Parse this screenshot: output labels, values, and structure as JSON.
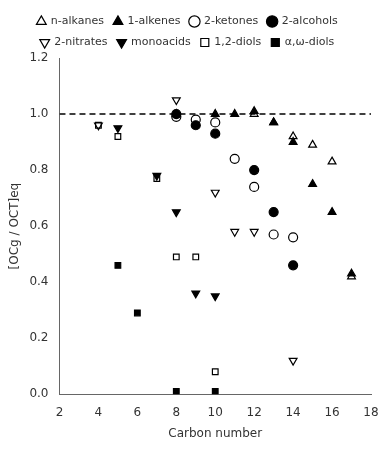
{
  "chart_data": {
    "type": "scatter",
    "xlabel": "Carbon number",
    "ylabel": "[OCg / OCT]eq",
    "xlim": [
      2,
      18
    ],
    "ylim": [
      0.0,
      1.2
    ],
    "xticks": [
      2,
      4,
      6,
      8,
      10,
      12,
      14,
      16,
      18
    ],
    "yticks": [
      {
        "value": 0.0,
        "label": "0.0"
      },
      0.2,
      0.4,
      0.6,
      0.8,
      {
        "value": 1.0,
        "label": "1.0"
      },
      1.2
    ],
    "grid": false,
    "legend": "top",
    "reference_line": {
      "y": 1.0,
      "line_style": "dashed",
      "color": "#000000"
    },
    "series": [
      {
        "name": "n-alkanes",
        "color": "#000000",
        "marker": "triangle-up-open",
        "x": [
          12,
          13,
          14,
          15,
          16,
          17
        ],
        "values": [
          1.0,
          0.97,
          0.92,
          0.89,
          0.83,
          0.42
        ]
      },
      {
        "name": "1-alkenes",
        "color": "#000000",
        "marker": "triangle-up",
        "x": [
          8,
          10,
          11,
          12,
          13,
          14,
          15,
          16,
          17
        ],
        "values": [
          1.0,
          1.0,
          1.0,
          1.01,
          0.97,
          0.9,
          0.75,
          0.65,
          0.43
        ]
      },
      {
        "name": "2-ketones",
        "color": "#000000",
        "marker": "circle-open",
        "x": [
          8,
          9,
          10,
          11,
          12,
          13,
          14
        ],
        "values": [
          0.99,
          0.98,
          0.97,
          0.84,
          0.74,
          0.57,
          0.56
        ]
      },
      {
        "name": "2-alcohols",
        "color": "#000000",
        "marker": "circle",
        "x": [
          8,
          9,
          10,
          12,
          13,
          14
        ],
        "values": [
          1.0,
          0.96,
          0.93,
          0.8,
          0.65,
          0.46
        ]
      },
      {
        "name": "2-nitrates",
        "color": "#000000",
        "marker": "triangle-down-open",
        "x": [
          4,
          8,
          10,
          11,
          12,
          14
        ],
        "values": [
          0.96,
          1.05,
          0.72,
          0.58,
          0.58,
          0.12
        ]
      },
      {
        "name": "monoacids",
        "color": "#000000",
        "marker": "triangle-down",
        "x": [
          5,
          7,
          8,
          9,
          10
        ],
        "values": [
          0.95,
          0.78,
          0.65,
          0.36,
          0.35
        ]
      },
      {
        "name": "1,2-diols",
        "color": "#000000",
        "marker": "square-open",
        "x": [
          4,
          5,
          7,
          8,
          9,
          10
        ],
        "values": [
          0.96,
          0.92,
          0.77,
          0.49,
          0.49,
          0.08
        ]
      },
      {
        "name": "α,ω-diols",
        "color": "#000000",
        "marker": "square",
        "x": [
          5,
          6,
          8,
          10
        ],
        "values": [
          0.46,
          0.29,
          0.01,
          0.01
        ]
      }
    ]
  }
}
